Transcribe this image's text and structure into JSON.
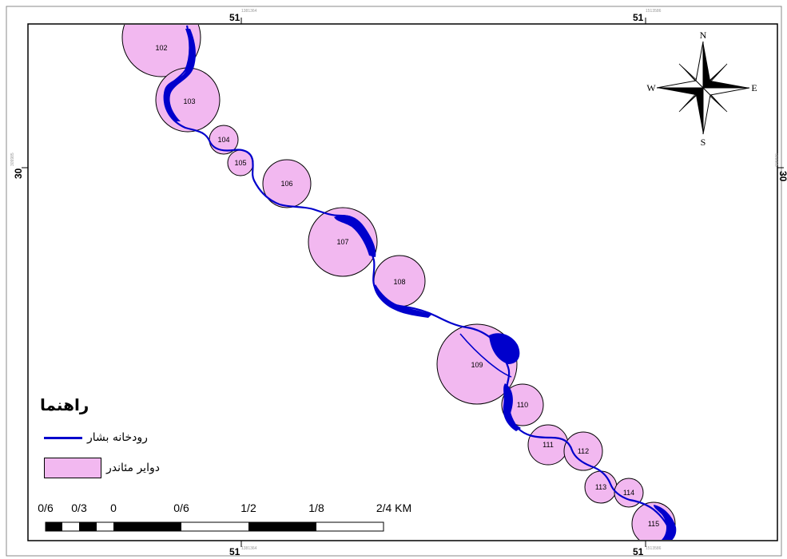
{
  "graticule": {
    "longitude_labels": [
      "51",
      "51"
    ],
    "latitude_labels": [
      "30",
      "30"
    ],
    "minor_labels": [
      "1381364",
      "1513586",
      "1381364",
      "1513586",
      "309985",
      "309985"
    ]
  },
  "compass": {
    "north": "N",
    "south": "S",
    "east": "E",
    "west": "W"
  },
  "meander_circles": [
    {
      "id": "102"
    },
    {
      "id": "103"
    },
    {
      "id": "104"
    },
    {
      "id": "105"
    },
    {
      "id": "106"
    },
    {
      "id": "107"
    },
    {
      "id": "108"
    },
    {
      "id": "109"
    },
    {
      "id": "110"
    },
    {
      "id": "111"
    },
    {
      "id": "112"
    },
    {
      "id": "113"
    },
    {
      "id": "114"
    },
    {
      "id": "115"
    }
  ],
  "legend": {
    "title": "راهنما",
    "river_label": "رودخانه بشار",
    "circles_label": "دواير مئاندر"
  },
  "scale_bar": {
    "labels": [
      "0/6",
      "0/3",
      "0",
      "0/6",
      "1/2",
      "1/8",
      "2/4 KM"
    ]
  },
  "colors": {
    "river": "#0000cc",
    "circle_fill": "#f2b8f0",
    "frame": "#000000"
  }
}
